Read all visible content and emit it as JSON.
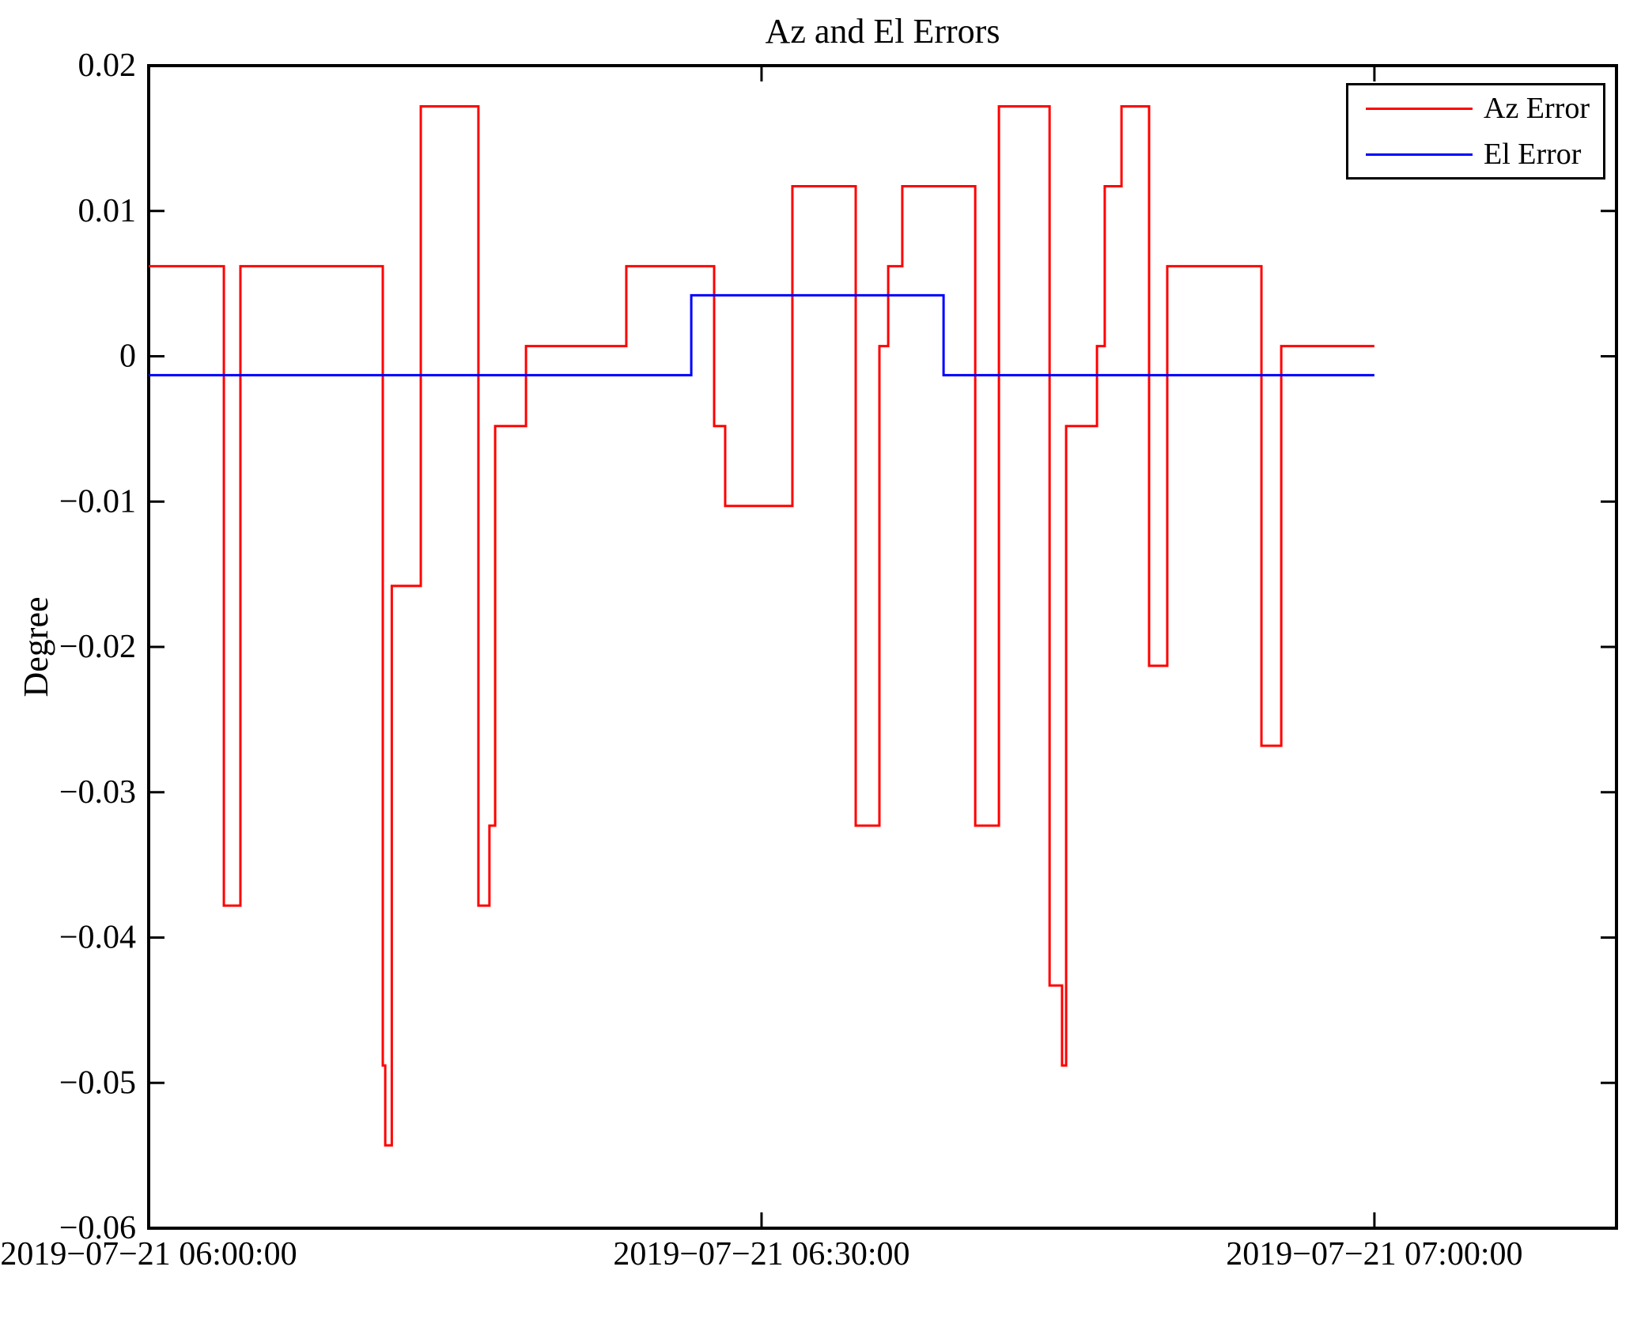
{
  "chart_data": {
    "type": "line",
    "subtype": "step-post",
    "title": "Az and El Errors",
    "xlabel": "",
    "ylabel": "Degree",
    "grid": false,
    "legend_position": "top-right",
    "background_color": "#ffffff",
    "axis_color": "#000000",
    "ylim": [
      -0.06,
      0.02
    ],
    "x_range_minutes": [
      0,
      71.85
    ],
    "x_ticks": [
      {
        "minute": 0,
        "label": "2019−07−21 06:00:00"
      },
      {
        "minute": 30,
        "label": "2019−07−21 06:30:00"
      },
      {
        "minute": 60,
        "label": "2019−07−21 07:00:00"
      }
    ],
    "y_ticks": [
      {
        "v": 0.02,
        "label": "0.02"
      },
      {
        "v": 0.01,
        "label": "0.01"
      },
      {
        "v": 0.0,
        "label": "0"
      },
      {
        "v": -0.01,
        "label": "−0.01"
      },
      {
        "v": -0.02,
        "label": "−0.02"
      },
      {
        "v": -0.03,
        "label": "−0.03"
      },
      {
        "v": -0.04,
        "label": "−0.04"
      },
      {
        "v": -0.05,
        "label": "−0.05"
      },
      {
        "v": -0.06,
        "label": "−0.06"
      }
    ],
    "series": [
      {
        "name": "Az Error",
        "color": "#ff0000",
        "end_minute": 60.0,
        "steps": [
          [
            0.0,
            0.0062
          ],
          [
            3.68,
            -0.0378
          ],
          [
            4.49,
            0.0062
          ],
          [
            11.46,
            -0.0488
          ],
          [
            11.58,
            -0.0543
          ],
          [
            11.9,
            -0.0158
          ],
          [
            13.32,
            0.0172
          ],
          [
            16.14,
            -0.0378
          ],
          [
            16.68,
            -0.0323
          ],
          [
            16.96,
            -0.0048
          ],
          [
            18.47,
            0.0007
          ],
          [
            23.38,
            0.0062
          ],
          [
            27.68,
            -0.0048
          ],
          [
            28.22,
            -0.0103
          ],
          [
            31.51,
            0.0117
          ],
          [
            34.61,
            -0.0323
          ],
          [
            35.77,
            0.0007
          ],
          [
            36.2,
            0.0062
          ],
          [
            36.89,
            0.0117
          ],
          [
            40.46,
            -0.0323
          ],
          [
            41.62,
            0.0172
          ],
          [
            44.1,
            -0.0433
          ],
          [
            44.71,
            -0.0488
          ],
          [
            44.91,
            -0.0048
          ],
          [
            46.42,
            0.0007
          ],
          [
            46.8,
            0.0117
          ],
          [
            47.62,
            0.0172
          ],
          [
            48.97,
            -0.0213
          ],
          [
            49.86,
            0.0062
          ],
          [
            54.47,
            -0.0268
          ],
          [
            55.44,
            0.0007
          ]
        ]
      },
      {
        "name": "El Error",
        "color": "#0000ff",
        "end_minute": 60.0,
        "steps": [
          [
            0.0,
            -0.0013
          ],
          [
            26.56,
            0.0042
          ],
          [
            38.91,
            -0.0013
          ]
        ]
      }
    ]
  },
  "legend": {
    "items": [
      {
        "label": "Az Error",
        "color": "#ff0000"
      },
      {
        "label": "El Error",
        "color": "#0000ff"
      }
    ]
  }
}
